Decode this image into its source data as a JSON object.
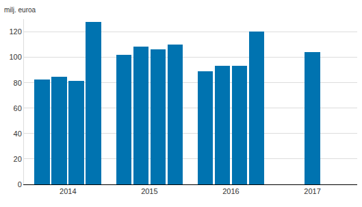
{
  "chart_data": {
    "type": "bar",
    "y_label": "milj. euroa",
    "x": [
      2013.685,
      2013.895,
      2014.105,
      2014.315,
      2014.685,
      2014.895,
      2015.105,
      2015.315,
      2015.685,
      2015.895,
      2016.105,
      2016.315,
      2017
    ],
    "values": [
      82.5,
      84.7,
      81.4,
      128,
      102,
      108.6,
      106.4,
      110.2,
      89,
      93.4,
      93.4,
      120.5,
      104.2
    ],
    "color": "#0073b0",
    "xlim": [
      2013.46,
      2017.55
    ],
    "xticks": [
      2014,
      2015,
      2016,
      2017
    ],
    "ylim": [
      0,
      130
    ],
    "yticks": [
      0,
      20,
      40,
      60,
      80,
      100,
      120
    ],
    "grid": true
  }
}
